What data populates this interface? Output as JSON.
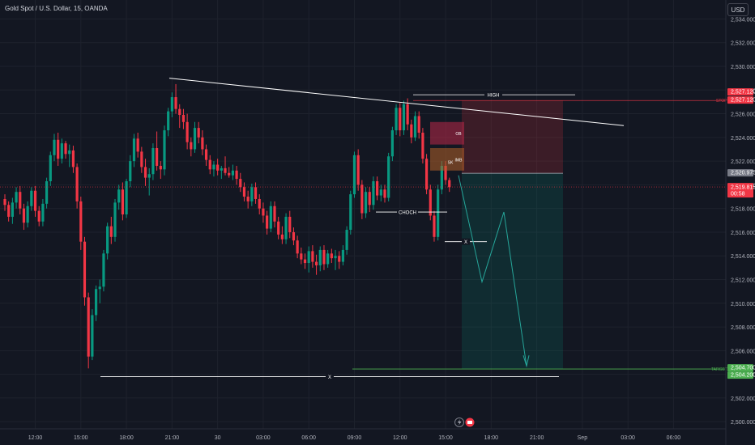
{
  "symbol_title": "Gold Spot / U.S. Dollar, 15, OANDA",
  "currency_button": "USD",
  "colors": {
    "background": "#131722",
    "up": "#089981",
    "down": "#f23645",
    "grid": "#1e222d",
    "axis_text": "#b2b5be",
    "annotation": "#ffffff",
    "target_line": "#4caf50",
    "stop_line": "#f23645"
  },
  "chart_data": {
    "type": "candlestick",
    "ylim": [
      2499.4,
      2535.6
    ],
    "y_ticks": [
      "2,500.000",
      "2,502.000",
      "2,504.000",
      "2,506.000",
      "2,508.000",
      "2,510.000",
      "2,512.000",
      "2,514.000",
      "2,516.000",
      "2,518.000",
      "2,520.000",
      "2,522.000",
      "2,524.000",
      "2,526.000",
      "2,528.000",
      "2,530.000",
      "2,532.000",
      "2,534.000"
    ],
    "y_tick_values": [
      2500,
      2502,
      2504,
      2506,
      2508,
      2510,
      2512,
      2514,
      2516,
      2518,
      2520,
      2522,
      2524,
      2526,
      2528,
      2530,
      2532,
      2534
    ],
    "x_ticks": [
      "12:00",
      "15:00",
      "18:00",
      "21:00",
      "30",
      "03:00",
      "06:00",
      "09:00",
      "12:00",
      "15:00",
      "18:00",
      "21:00",
      "Sep",
      "03:00",
      "06:00"
    ],
    "x_tick_bars": [
      8,
      20,
      32,
      44,
      56,
      68,
      80,
      92,
      104,
      116,
      128,
      140,
      152,
      164,
      176
    ],
    "candles": [
      [
        2518.8,
        2519.2,
        2517.8,
        2518.3
      ],
      [
        2518.3,
        2518.6,
        2516.9,
        2517.3
      ],
      [
        2517.3,
        2518.9,
        2516.7,
        2518.5
      ],
      [
        2518.5,
        2519.8,
        2518.0,
        2519.4
      ],
      [
        2519.4,
        2519.9,
        2517.5,
        2518.0
      ],
      [
        2518.0,
        2518.4,
        2516.2,
        2516.8
      ],
      [
        2516.8,
        2518.6,
        2516.4,
        2518.2
      ],
      [
        2518.2,
        2519.8,
        2517.8,
        2519.5
      ],
      [
        2519.5,
        2519.9,
        2517.3,
        2517.8
      ],
      [
        2517.8,
        2518.2,
        2516.5,
        2516.9
      ],
      [
        2516.9,
        2518.8,
        2516.5,
        2518.4
      ],
      [
        2518.4,
        2520.6,
        2518.0,
        2520.3
      ],
      [
        2520.3,
        2522.8,
        2519.9,
        2522.5
      ],
      [
        2522.5,
        2524.3,
        2522.0,
        2523.8
      ],
      [
        2523.8,
        2524.4,
        2521.6,
        2522.2
      ],
      [
        2522.2,
        2523.9,
        2521.8,
        2523.5
      ],
      [
        2523.5,
        2523.7,
        2522.2,
        2522.6
      ],
      [
        2522.6,
        2523.4,
        2521.5,
        2522.9
      ],
      [
        2522.9,
        2523.3,
        2521.0,
        2521.5
      ],
      [
        2521.5,
        2521.8,
        2518.0,
        2518.6
      ],
      [
        2518.6,
        2519.0,
        2514.5,
        2515.2
      ],
      [
        2515.2,
        2515.6,
        2509.8,
        2510.5
      ],
      [
        2510.5,
        2510.9,
        2504.5,
        2505.5
      ],
      [
        2505.5,
        2509.5,
        2505.2,
        2509.0
      ],
      [
        2509.0,
        2511.5,
        2508.5,
        2511.2
      ],
      [
        2511.2,
        2512.0,
        2510.0,
        2511.4
      ],
      [
        2511.4,
        2514.5,
        2511.0,
        2514.2
      ],
      [
        2514.2,
        2516.8,
        2513.7,
        2516.5
      ],
      [
        2516.5,
        2517.3,
        2515.0,
        2515.6
      ],
      [
        2515.6,
        2518.8,
        2515.2,
        2518.5
      ],
      [
        2518.5,
        2520.0,
        2517.9,
        2519.6
      ],
      [
        2519.6,
        2520.2,
        2517.0,
        2517.5
      ],
      [
        2517.5,
        2520.5,
        2517.2,
        2520.3
      ],
      [
        2520.3,
        2522.5,
        2519.8,
        2522.0
      ],
      [
        2522.0,
        2524.3,
        2521.5,
        2523.9
      ],
      [
        2523.9,
        2524.4,
        2522.3,
        2522.8
      ],
      [
        2522.8,
        2523.2,
        2521.0,
        2521.5
      ],
      [
        2521.5,
        2522.2,
        2519.9,
        2520.6
      ],
      [
        2520.6,
        2521.4,
        2519.1,
        2520.9
      ],
      [
        2520.9,
        2523.5,
        2520.4,
        2523.1
      ],
      [
        2523.1,
        2524.5,
        2521.2,
        2521.6
      ],
      [
        2521.6,
        2522.0,
        2520.5,
        2521.3
      ],
      [
        2521.3,
        2525.0,
        2520.8,
        2524.6
      ],
      [
        2524.6,
        2526.5,
        2524.1,
        2526.2
      ],
      [
        2526.2,
        2527.8,
        2525.7,
        2527.4
      ],
      [
        2527.4,
        2528.5,
        2526.0,
        2526.4
      ],
      [
        2526.4,
        2526.8,
        2524.8,
        2525.9
      ],
      [
        2525.9,
        2526.4,
        2524.7,
        2525.3
      ],
      [
        2525.3,
        2526.0,
        2523.0,
        2523.6
      ],
      [
        2523.6,
        2524.0,
        2522.4,
        2523.0
      ],
      [
        2523.0,
        2525.3,
        2522.7,
        2524.8
      ],
      [
        2524.8,
        2525.3,
        2523.5,
        2524.0
      ],
      [
        2524.0,
        2524.6,
        2522.5,
        2523.0
      ],
      [
        2523.0,
        2523.4,
        2521.6,
        2522.1
      ],
      [
        2522.1,
        2522.5,
        2520.9,
        2521.3
      ],
      [
        2521.3,
        2522.0,
        2520.7,
        2521.7
      ],
      [
        2521.7,
        2522.2,
        2520.8,
        2521.2
      ],
      [
        2521.2,
        2521.6,
        2520.5,
        2521.4
      ],
      [
        2521.4,
        2522.4,
        2520.8,
        2521.0
      ],
      [
        2521.0,
        2521.5,
        2520.6,
        2520.8
      ],
      [
        2520.8,
        2521.7,
        2520.4,
        2521.2
      ],
      [
        2521.2,
        2521.6,
        2520.0,
        2520.5
      ],
      [
        2520.5,
        2521.0,
        2519.4,
        2519.8
      ],
      [
        2519.8,
        2520.2,
        2518.6,
        2519.0
      ],
      [
        2519.0,
        2519.5,
        2518.0,
        2518.6
      ],
      [
        2518.6,
        2520.1,
        2518.2,
        2519.8
      ],
      [
        2519.8,
        2520.2,
        2518.4,
        2518.8
      ],
      [
        2518.8,
        2519.2,
        2517.5,
        2518.0
      ],
      [
        2518.0,
        2518.5,
        2516.8,
        2517.4
      ],
      [
        2517.4,
        2517.8,
        2515.8,
        2516.3
      ],
      [
        2516.3,
        2518.6,
        2516.0,
        2518.2
      ],
      [
        2518.2,
        2518.6,
        2516.4,
        2516.9
      ],
      [
        2516.9,
        2517.3,
        2515.4,
        2515.8
      ],
      [
        2515.8,
        2516.5,
        2515.0,
        2515.4
      ],
      [
        2515.4,
        2517.6,
        2515.0,
        2517.3
      ],
      [
        2517.3,
        2517.8,
        2515.5,
        2516.0
      ],
      [
        2516.0,
        2516.4,
        2514.9,
        2515.3
      ],
      [
        2515.3,
        2515.7,
        2513.8,
        2514.2
      ],
      [
        2514.2,
        2514.7,
        2513.3,
        2513.7
      ],
      [
        2513.7,
        2514.2,
        2512.9,
        2513.4
      ],
      [
        2513.4,
        2514.8,
        2512.6,
        2514.4
      ],
      [
        2514.4,
        2514.9,
        2513.0,
        2513.5
      ],
      [
        2513.5,
        2514.1,
        2512.4,
        2513.2
      ],
      [
        2513.2,
        2514.8,
        2512.7,
        2514.5
      ],
      [
        2514.5,
        2514.9,
        2512.8,
        2513.3
      ],
      [
        2513.3,
        2514.5,
        2513.0,
        2514.2
      ],
      [
        2514.2,
        2514.6,
        2513.4,
        2513.8
      ],
      [
        2513.8,
        2514.5,
        2512.8,
        2514.0
      ],
      [
        2514.0,
        2514.4,
        2512.9,
        2513.5
      ],
      [
        2513.5,
        2514.9,
        2513.2,
        2514.5
      ],
      [
        2514.5,
        2516.5,
        2514.1,
        2516.2
      ],
      [
        2516.2,
        2519.5,
        2515.8,
        2519.2
      ],
      [
        2519.2,
        2522.8,
        2518.9,
        2522.5
      ],
      [
        2522.5,
        2523.0,
        2519.5,
        2520.0
      ],
      [
        2520.0,
        2520.4,
        2517.1,
        2517.6
      ],
      [
        2517.6,
        2519.8,
        2517.2,
        2519.4
      ],
      [
        2519.4,
        2519.8,
        2517.7,
        2518.3
      ],
      [
        2518.3,
        2520.7,
        2517.9,
        2520.3
      ],
      [
        2520.3,
        2520.7,
        2518.7,
        2519.1
      ],
      [
        2519.1,
        2520.0,
        2518.6,
        2519.6
      ],
      [
        2519.6,
        2520.0,
        2518.5,
        2518.9
      ],
      [
        2518.9,
        2522.7,
        2518.6,
        2522.4
      ],
      [
        2522.4,
        2524.9,
        2522.0,
        2524.6
      ],
      [
        2524.6,
        2526.8,
        2524.2,
        2526.5
      ],
      [
        2526.5,
        2526.9,
        2524.1,
        2524.6
      ],
      [
        2524.6,
        2527.1,
        2524.2,
        2526.8
      ],
      [
        2526.8,
        2527.3,
        2524.6,
        2525.1
      ],
      [
        2525.1,
        2525.5,
        2523.5,
        2524.0
      ],
      [
        2524.0,
        2526.2,
        2523.7,
        2525.8
      ],
      [
        2525.8,
        2526.2,
        2523.9,
        2524.4
      ],
      [
        2524.4,
        2524.8,
        2521.8,
        2522.2
      ],
      [
        2522.2,
        2522.6,
        2519.2,
        2519.6
      ],
      [
        2519.6,
        2520.0,
        2517.0,
        2517.4
      ],
      [
        2517.4,
        2517.8,
        2515.2,
        2515.6
      ],
      [
        2515.6,
        2520.0,
        2515.3,
        2519.6
      ],
      [
        2519.6,
        2522.0,
        2519.2,
        2521.6
      ],
      [
        2521.6,
        2522.0,
        2520.0,
        2520.4
      ],
      [
        2520.4,
        2520.6,
        2519.4,
        2519.8
      ]
    ]
  },
  "price_labels": {
    "stop_upper": "2,527.120",
    "stop_lower": "2,527.120",
    "stop_tag": "STOP",
    "entry": "2,520.975",
    "current_price": "2,519.815",
    "countdown": "00:58",
    "target_upper": "2,504.700",
    "target_lower": "2,504.200",
    "target_tag": "TARGET"
  },
  "annotations": {
    "high": "HIGH",
    "ob": "OB",
    "imb": "IMB",
    "sk": "SK",
    "choch": "CHOCH",
    "x_short": "X",
    "x_long": "X"
  },
  "icons": {
    "lightning": "lightning-icon",
    "logo": "tradingview-logo-icon"
  }
}
